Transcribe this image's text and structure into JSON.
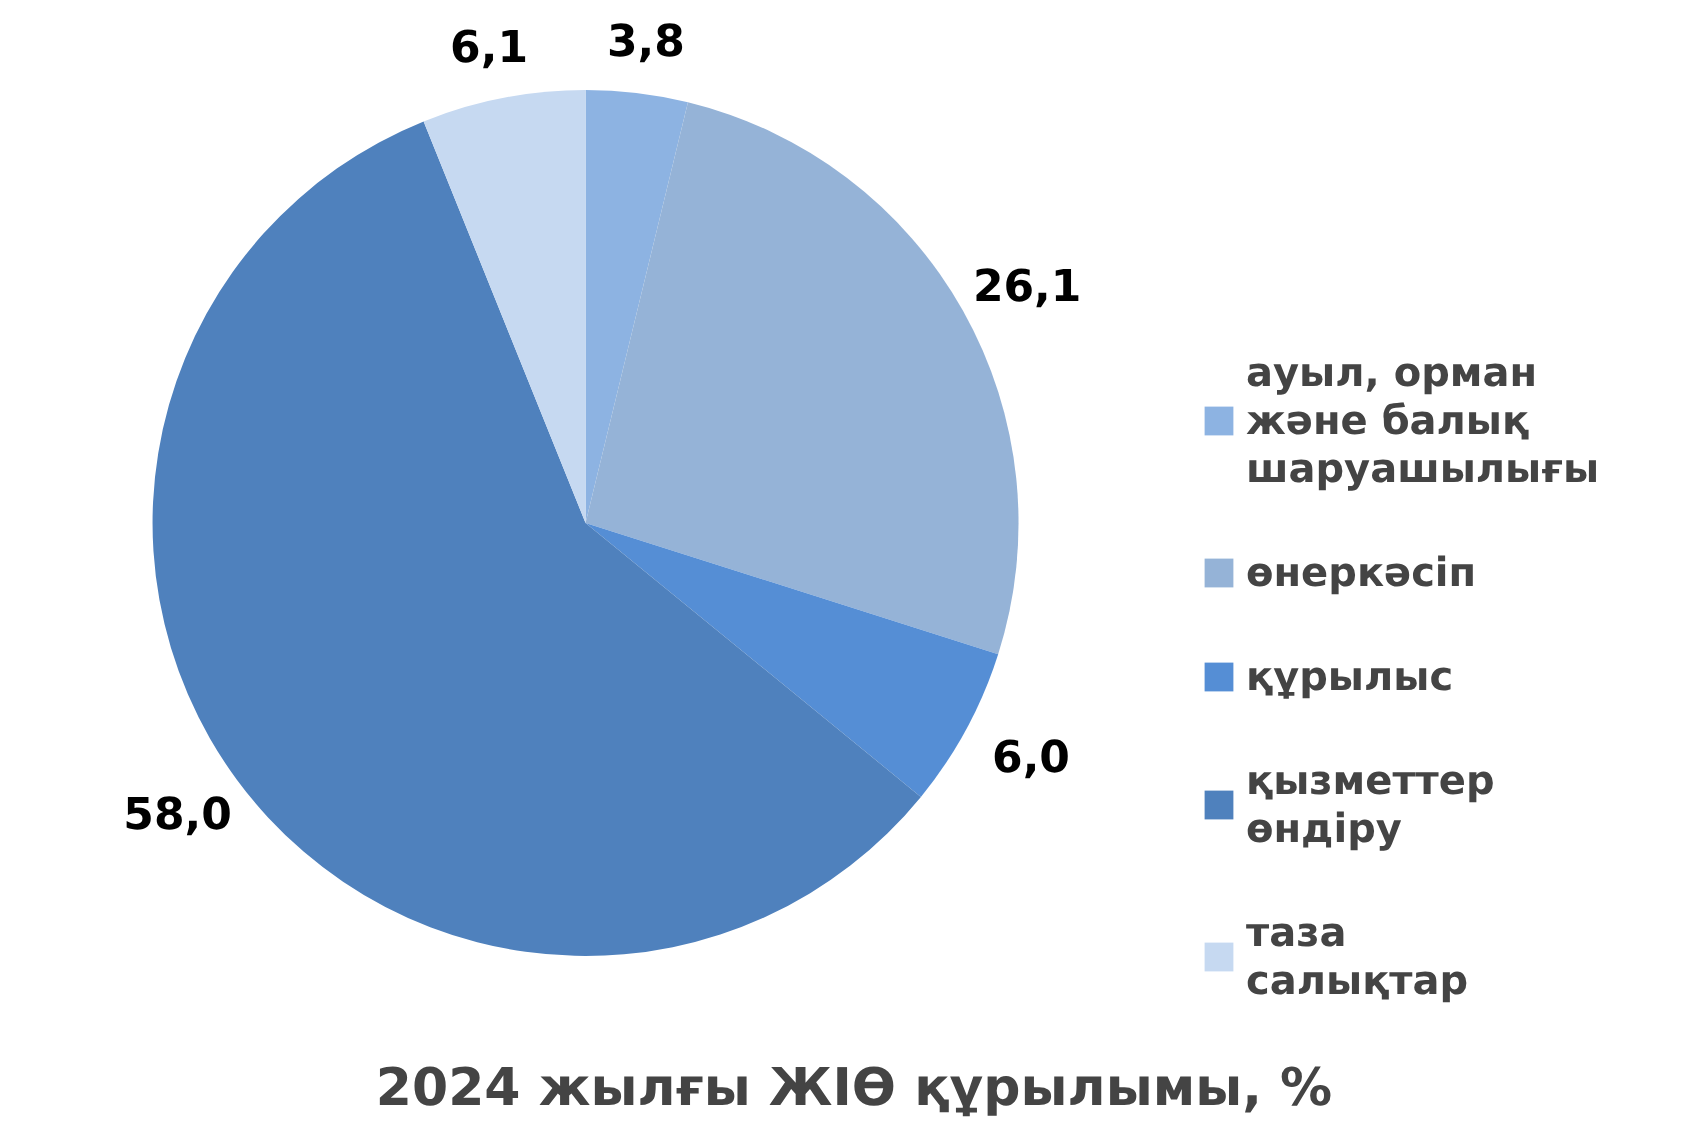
{
  "chart_data": {
    "type": "pie",
    "title": "2024 жылғы ЖІӨ құрылымы, %",
    "categories": [
      "ауыл, орман және балық шаруашылығы",
      "өнеркәсіп",
      "құрылыс",
      "қызметтер өндіру",
      "таза салықтар"
    ],
    "values": [
      3.8,
      26.1,
      6.0,
      58.0,
      6.1
    ],
    "colors": [
      "#8db3e2",
      "#95b3d7",
      "#558ed5",
      "#4f81bd",
      "#c6d9f1"
    ],
    "value_labels": [
      "3,8",
      "26,1",
      "6,0",
      "58,0",
      "6,1"
    ],
    "legend": "right"
  }
}
